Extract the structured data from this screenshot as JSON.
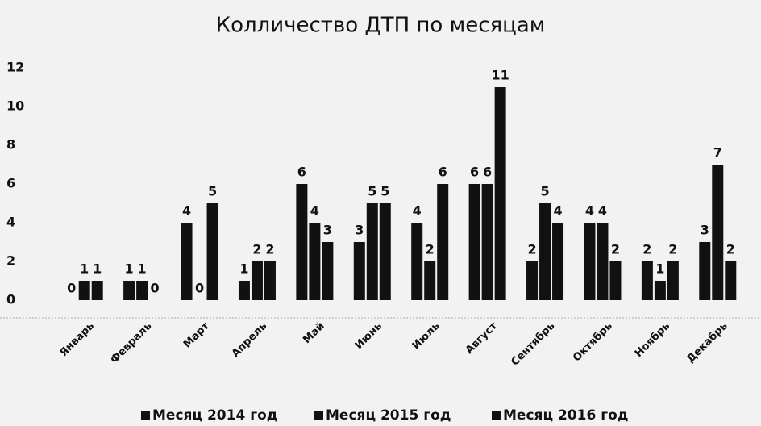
{
  "chart_data": {
    "type": "bar",
    "title": "Колличество ДТП по месяцам",
    "categories": [
      "Январь",
      "Февраль",
      "Март",
      "Апрель",
      "Май",
      "Июнь",
      "Июль",
      "Август",
      "Сентябрь",
      "Октябрь",
      "Ноябрь",
      "Декабрь"
    ],
    "series": [
      {
        "name": "Месяц 2014 год",
        "color": "#111111",
        "values": [
          0,
          1,
          4,
          1,
          6,
          3,
          4,
          6,
          2,
          4,
          2,
          3
        ]
      },
      {
        "name": "Месяц 2015 год",
        "color": "#111111",
        "values": [
          1,
          1,
          0,
          2,
          4,
          5,
          2,
          6,
          5,
          4,
          1,
          7
        ]
      },
      {
        "name": "Месяц 2016 год",
        "color": "#111111",
        "values": [
          1,
          0,
          5,
          2,
          3,
          5,
          6,
          11,
          4,
          2,
          2,
          2
        ]
      }
    ],
    "ylim": [
      0,
      12
    ],
    "yticks": [
      0,
      2,
      4,
      6,
      8,
      10,
      12
    ],
    "grid": false,
    "legend": "bottom"
  }
}
